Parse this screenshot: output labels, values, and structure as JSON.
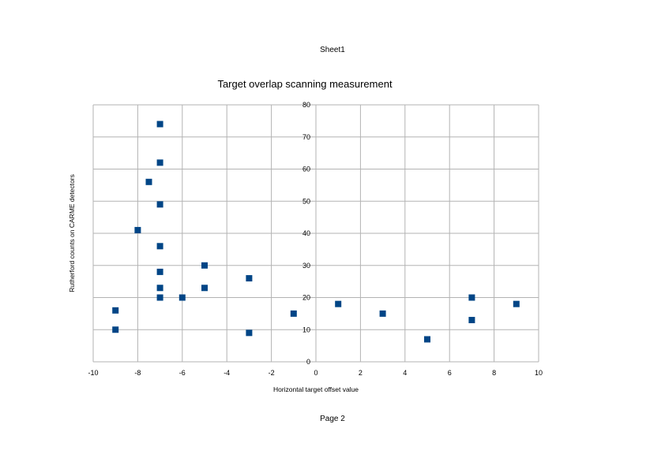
{
  "page": {
    "header": "Sheet1",
    "footer": "Page 2"
  },
  "chart_data": {
    "type": "scatter",
    "title": "Target overlap scanning measurement",
    "xlabel": "Horizontal target offset value",
    "ylabel": "Rutherford counts on CARME detectors",
    "xlim": [
      -10,
      10
    ],
    "ylim": [
      0,
      80
    ],
    "xticks": [
      -10,
      -8,
      -6,
      -4,
      -2,
      0,
      2,
      4,
      6,
      8,
      10
    ],
    "yticks": [
      0,
      10,
      20,
      30,
      40,
      50,
      60,
      70,
      80
    ],
    "grid": true,
    "legend": "none",
    "marker_color": "#004586",
    "series": [
      {
        "points": [
          {
            "x": -7,
            "y": 74
          },
          {
            "x": -7,
            "y": 62
          },
          {
            "x": -7.5,
            "y": 56
          },
          {
            "x": -7,
            "y": 49
          },
          {
            "x": -8,
            "y": 41
          },
          {
            "x": -7,
            "y": 36
          },
          {
            "x": -7,
            "y": 28
          },
          {
            "x": -7,
            "y": 23
          },
          {
            "x": -7,
            "y": 20
          },
          {
            "x": -6,
            "y": 20
          },
          {
            "x": -5,
            "y": 30
          },
          {
            "x": -5,
            "y": 23
          },
          {
            "x": -3,
            "y": 26
          },
          {
            "x": -3,
            "y": 9
          },
          {
            "x": -1,
            "y": 15
          },
          {
            "x": -9,
            "y": 16
          },
          {
            "x": -9,
            "y": 10
          },
          {
            "x": 1,
            "y": 18
          },
          {
            "x": 3,
            "y": 15
          },
          {
            "x": 5,
            "y": 7
          },
          {
            "x": 7,
            "y": 20
          },
          {
            "x": 7,
            "y": 13
          },
          {
            "x": 9,
            "y": 18
          }
        ]
      }
    ]
  }
}
